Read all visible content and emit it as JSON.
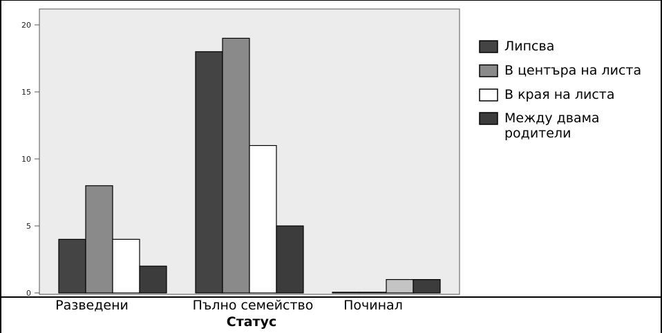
{
  "chart_data": {
    "type": "bar",
    "xlabel": "Статус",
    "ylabel": "",
    "ylim": [
      0,
      21
    ],
    "yticks": [
      0,
      5,
      10,
      15,
      20
    ],
    "categories": [
      "Разведени",
      "Пълно семейство",
      "Починал"
    ],
    "series": [
      {
        "name": "Липсва",
        "color": "#444444",
        "values": [
          4,
          18,
          0
        ]
      },
      {
        "name": "В центъра на листа",
        "color": "#8a8a8a",
        "values": [
          8,
          19,
          0
        ]
      },
      {
        "name": "В края на листа",
        "color": "#ffffff",
        "values": [
          4,
          11,
          1
        ]
      },
      {
        "name": "Между двама родители",
        "color": "#3c3c3c",
        "values": [
          2,
          5,
          1
        ]
      }
    ],
    "deceased_third_bar_color": "#c4c4c4",
    "plot_background": "#ececec",
    "grid": false,
    "legend_position": "right"
  }
}
